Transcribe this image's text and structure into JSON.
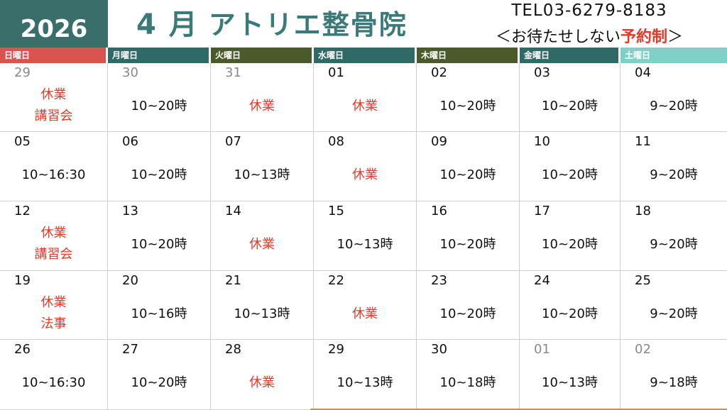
{
  "header": {
    "year": "2026",
    "month": "4 月",
    "clinic_name": "アトリエ整骨院",
    "tel": "TEL03-6279-8183",
    "policy_prefix": "＜お待たせしない",
    "policy_emphasis": "予約制",
    "policy_suffix": "＞"
  },
  "weekdays": [
    {
      "label": "日曜日",
      "color": "#d9534f"
    },
    {
      "label": "月曜日",
      "color": "#2f6a66"
    },
    {
      "label": "火曜日",
      "color": "#4a5a2a"
    },
    {
      "label": "水曜日",
      "color": "#2f6a66"
    },
    {
      "label": "木曜日",
      "color": "#4a5a2a"
    },
    {
      "label": "金曜日",
      "color": "#2f6a66"
    },
    {
      "label": "土曜日",
      "color": "#7fd1c8"
    }
  ],
  "weeks": [
    [
      {
        "day": "29",
        "gray": true,
        "lines": [
          "休業",
          "講習会"
        ],
        "closed": true
      },
      {
        "day": "30",
        "gray": true,
        "lines": [
          "10~20時"
        ],
        "closed": false
      },
      {
        "day": "31",
        "gray": true,
        "lines": [
          "休業"
        ],
        "closed": true
      },
      {
        "day": "01",
        "gray": false,
        "lines": [
          "休業"
        ],
        "closed": true
      },
      {
        "day": "02",
        "gray": false,
        "lines": [
          "10~20時"
        ],
        "closed": false
      },
      {
        "day": "03",
        "gray": false,
        "lines": [
          "10~20時"
        ],
        "closed": false
      },
      {
        "day": "04",
        "gray": false,
        "lines": [
          "9~20時"
        ],
        "closed": false
      }
    ],
    [
      {
        "day": "05",
        "gray": false,
        "lines": [
          "10~16:30"
        ],
        "closed": false
      },
      {
        "day": "06",
        "gray": false,
        "lines": [
          "10~20時"
        ],
        "closed": false
      },
      {
        "day": "07",
        "gray": false,
        "lines": [
          "10~13時"
        ],
        "closed": false
      },
      {
        "day": "08",
        "gray": false,
        "lines": [
          "休業"
        ],
        "closed": true
      },
      {
        "day": "09",
        "gray": false,
        "lines": [
          "10~20時"
        ],
        "closed": false
      },
      {
        "day": "10",
        "gray": false,
        "lines": [
          "10~20時"
        ],
        "closed": false
      },
      {
        "day": "11",
        "gray": false,
        "lines": [
          "9~20時"
        ],
        "closed": false
      }
    ],
    [
      {
        "day": "12",
        "gray": false,
        "lines": [
          "休業",
          "講習会"
        ],
        "closed": true
      },
      {
        "day": "13",
        "gray": false,
        "lines": [
          "10~20時"
        ],
        "closed": false
      },
      {
        "day": "14",
        "gray": false,
        "lines": [
          "休業"
        ],
        "closed": true
      },
      {
        "day": "15",
        "gray": false,
        "lines": [
          "10~13時"
        ],
        "closed": false
      },
      {
        "day": "16",
        "gray": false,
        "lines": [
          "10~20時"
        ],
        "closed": false
      },
      {
        "day": "17",
        "gray": false,
        "lines": [
          "10~20時"
        ],
        "closed": false
      },
      {
        "day": "18",
        "gray": false,
        "lines": [
          "9~20時"
        ],
        "closed": false
      }
    ],
    [
      {
        "day": "19",
        "gray": false,
        "lines": [
          "休業",
          "法事"
        ],
        "closed": true
      },
      {
        "day": "20",
        "gray": false,
        "lines": [
          "10~16時"
        ],
        "closed": false
      },
      {
        "day": "21",
        "gray": false,
        "lines": [
          "10~13時"
        ],
        "closed": false
      },
      {
        "day": "22",
        "gray": false,
        "lines": [
          "休業"
        ],
        "closed": true
      },
      {
        "day": "23",
        "gray": false,
        "lines": [
          "10~20時"
        ],
        "closed": false
      },
      {
        "day": "24",
        "gray": false,
        "lines": [
          "10~20時"
        ],
        "closed": false
      },
      {
        "day": "25",
        "gray": false,
        "lines": [
          "9~20時"
        ],
        "closed": false
      }
    ],
    [
      {
        "day": "26",
        "gray": false,
        "lines": [
          "10~16:30"
        ],
        "closed": false
      },
      {
        "day": "27",
        "gray": false,
        "lines": [
          "10~20時"
        ],
        "closed": false
      },
      {
        "day": "28",
        "gray": false,
        "lines": [
          "休業"
        ],
        "closed": true
      },
      {
        "day": "29",
        "gray": false,
        "lines": [
          "10~13時"
        ],
        "closed": false
      },
      {
        "day": "30",
        "gray": false,
        "lines": [
          "10~18時"
        ],
        "closed": false
      },
      {
        "day": "01",
        "gray": true,
        "lines": [
          "10~13時"
        ],
        "closed": false
      },
      {
        "day": "02",
        "gray": true,
        "lines": [
          "9~18時"
        ],
        "closed": false
      }
    ]
  ],
  "colors": {
    "closed_text": "#e4392b",
    "title_teal": "#3b7a78",
    "year_bg": "#3a6e6b",
    "accent_orange": "#e6893c"
  }
}
